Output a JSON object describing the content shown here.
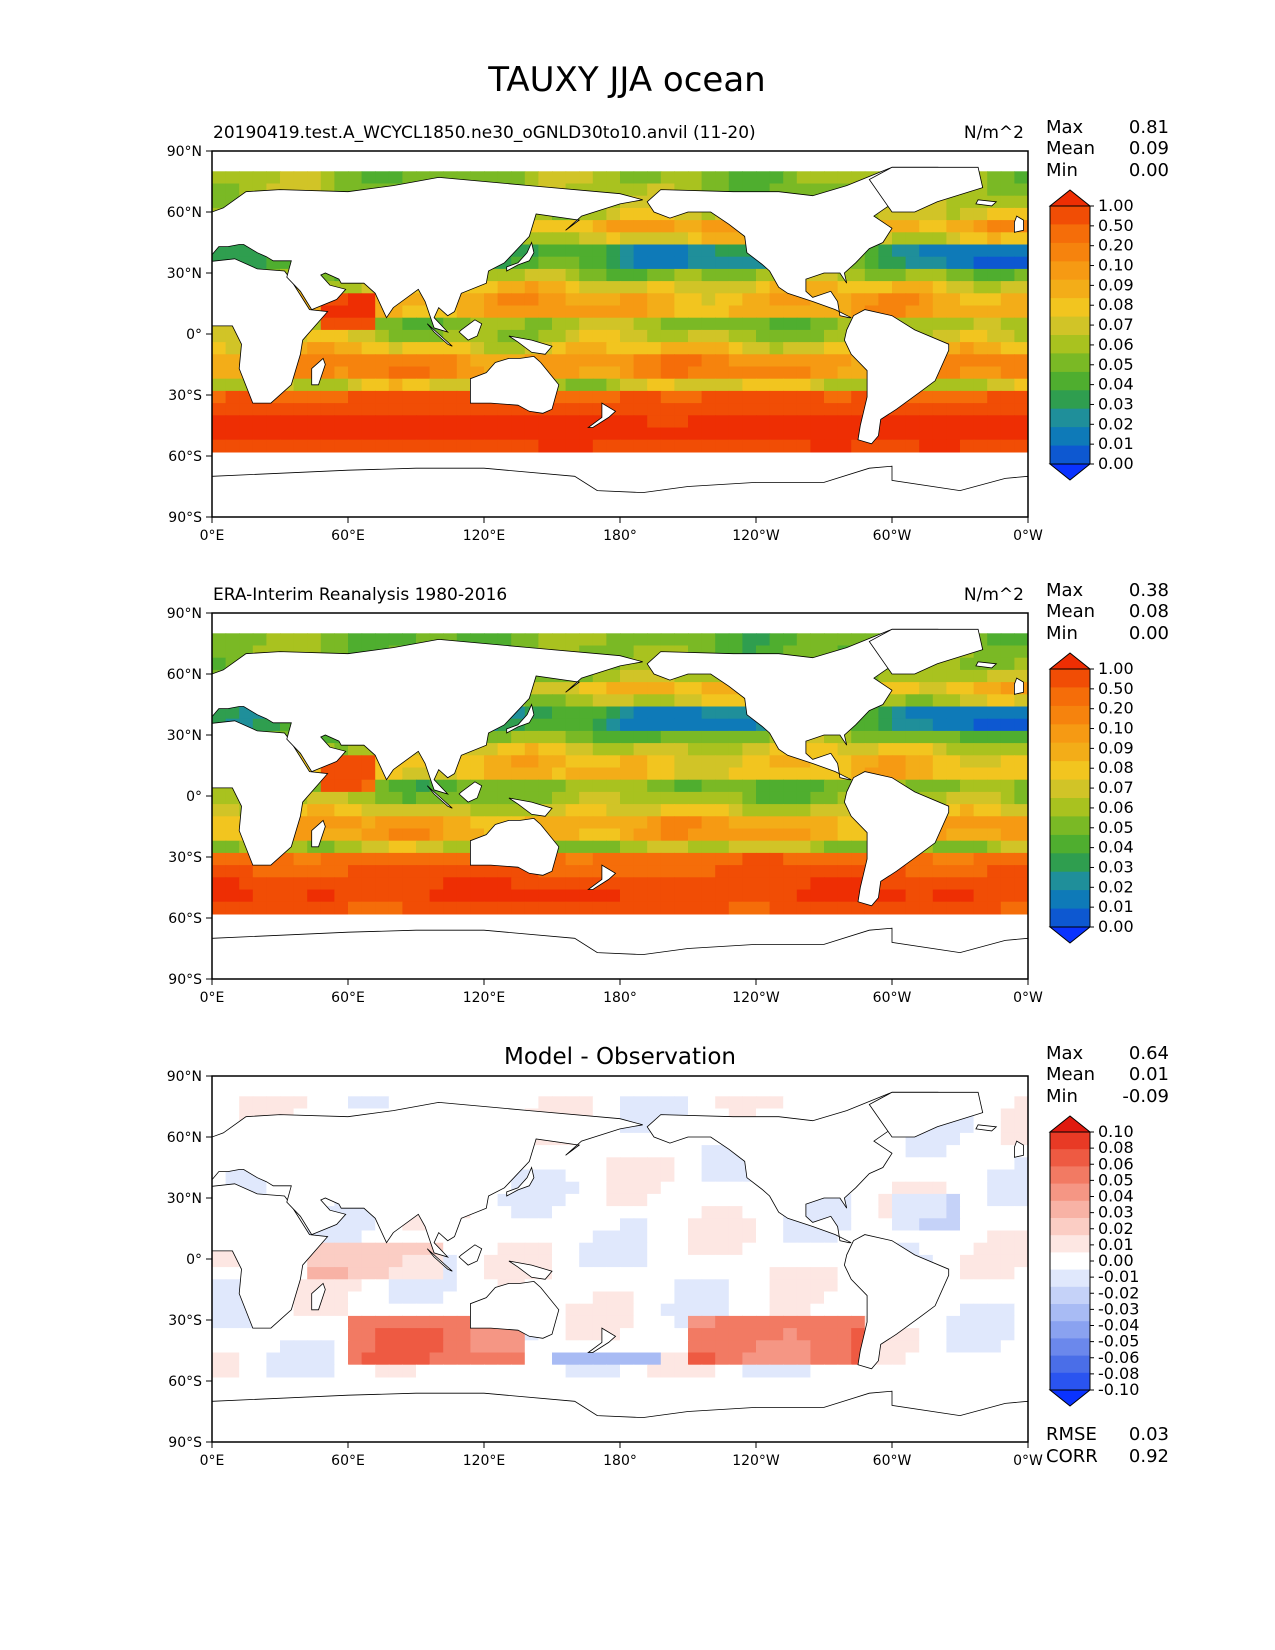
{
  "figure": {
    "title": "TAUXY JJA ocean"
  },
  "lat_ticks": [
    "90°N",
    "60°N",
    "30°N",
    "0°",
    "30°S",
    "60°S",
    "90°S"
  ],
  "lon_ticks": [
    "0°E",
    "60°E",
    "120°E",
    "180°",
    "120°W",
    "60°W",
    "0°W"
  ],
  "colors": {
    "field_scale": [
      "#0a33ff",
      "#0d58d1",
      "#0e7ab8",
      "#1f8f9a",
      "#2f9e4f",
      "#4fae2f",
      "#7ab925",
      "#a9c21f",
      "#d1c427",
      "#f2c51f",
      "#f3ad18",
      "#f69a13",
      "#f6830d",
      "#f56d09",
      "#f14d05",
      "#ee2e03"
    ],
    "diff_scale": [
      "#0a33ff",
      "#2a54f0",
      "#4a6ee8",
      "#6b88ec",
      "#8aa2f0",
      "#a8bbf4",
      "#c5d2f8",
      "#e0e8fc",
      "#ffffff",
      "#fde7e3",
      "#fbcdc4",
      "#f8b2a5",
      "#f59684",
      "#f27a63",
      "#ee5a42",
      "#e83a25",
      "#e01a0f"
    ],
    "land_outline": "#000000"
  },
  "chart_data": [
    {
      "type": "heatmap",
      "name": "model",
      "left_title": "20190419.test.A_WCYCL1850.ne30_oGNLD30to10.anvil (11-20)",
      "units": "N/m^2",
      "stats": [
        {
          "label": "Max",
          "value": "0.81"
        },
        {
          "label": "Mean",
          "value": "0.09"
        },
        {
          "label": "Min",
          "value": "0.00"
        }
      ],
      "colorbar_levels": [
        "1.00",
        "0.50",
        "0.20",
        "0.10",
        "0.09",
        "0.08",
        "0.07",
        "0.06",
        "0.05",
        "0.04",
        "0.03",
        "0.02",
        "0.01",
        "0.00"
      ],
      "xlim": [
        0,
        360
      ],
      "ylim": [
        -90,
        90
      ],
      "ocean_south_limit": -55
    },
    {
      "type": "heatmap",
      "name": "observation",
      "left_title": "ERA-Interim Reanalysis 1980-2016",
      "units": "N/m^2",
      "stats": [
        {
          "label": "Max",
          "value": "0.38"
        },
        {
          "label": "Mean",
          "value": "0.08"
        },
        {
          "label": "Min",
          "value": "0.00"
        }
      ],
      "colorbar_levels": [
        "1.00",
        "0.50",
        "0.20",
        "0.10",
        "0.09",
        "0.08",
        "0.07",
        "0.06",
        "0.05",
        "0.04",
        "0.03",
        "0.02",
        "0.01",
        "0.00"
      ],
      "xlim": [
        0,
        360
      ],
      "ylim": [
        -90,
        90
      ],
      "ocean_south_limit": -55
    },
    {
      "type": "heatmap",
      "name": "difference",
      "center_title": "Model - Observation",
      "units": "",
      "stats": [
        {
          "label": "Max",
          "value": "0.64"
        },
        {
          "label": "Mean",
          "value": "0.01"
        },
        {
          "label": "Min",
          "value": "-0.09"
        }
      ],
      "colorbar_levels": [
        "0.10",
        "0.08",
        "0.06",
        "0.05",
        "0.04",
        "0.03",
        "0.02",
        "0.01",
        "0.00",
        "-0.01",
        "-0.02",
        "-0.03",
        "-0.04",
        "-0.05",
        "-0.06",
        "-0.08",
        "-0.10"
      ],
      "extra_stats": [
        {
          "label": "RMSE",
          "value": "0.03"
        },
        {
          "label": "CORR",
          "value": "0.92"
        }
      ],
      "xlim": [
        0,
        360
      ],
      "ylim": [
        -90,
        90
      ],
      "ocean_south_limit": -55
    }
  ]
}
